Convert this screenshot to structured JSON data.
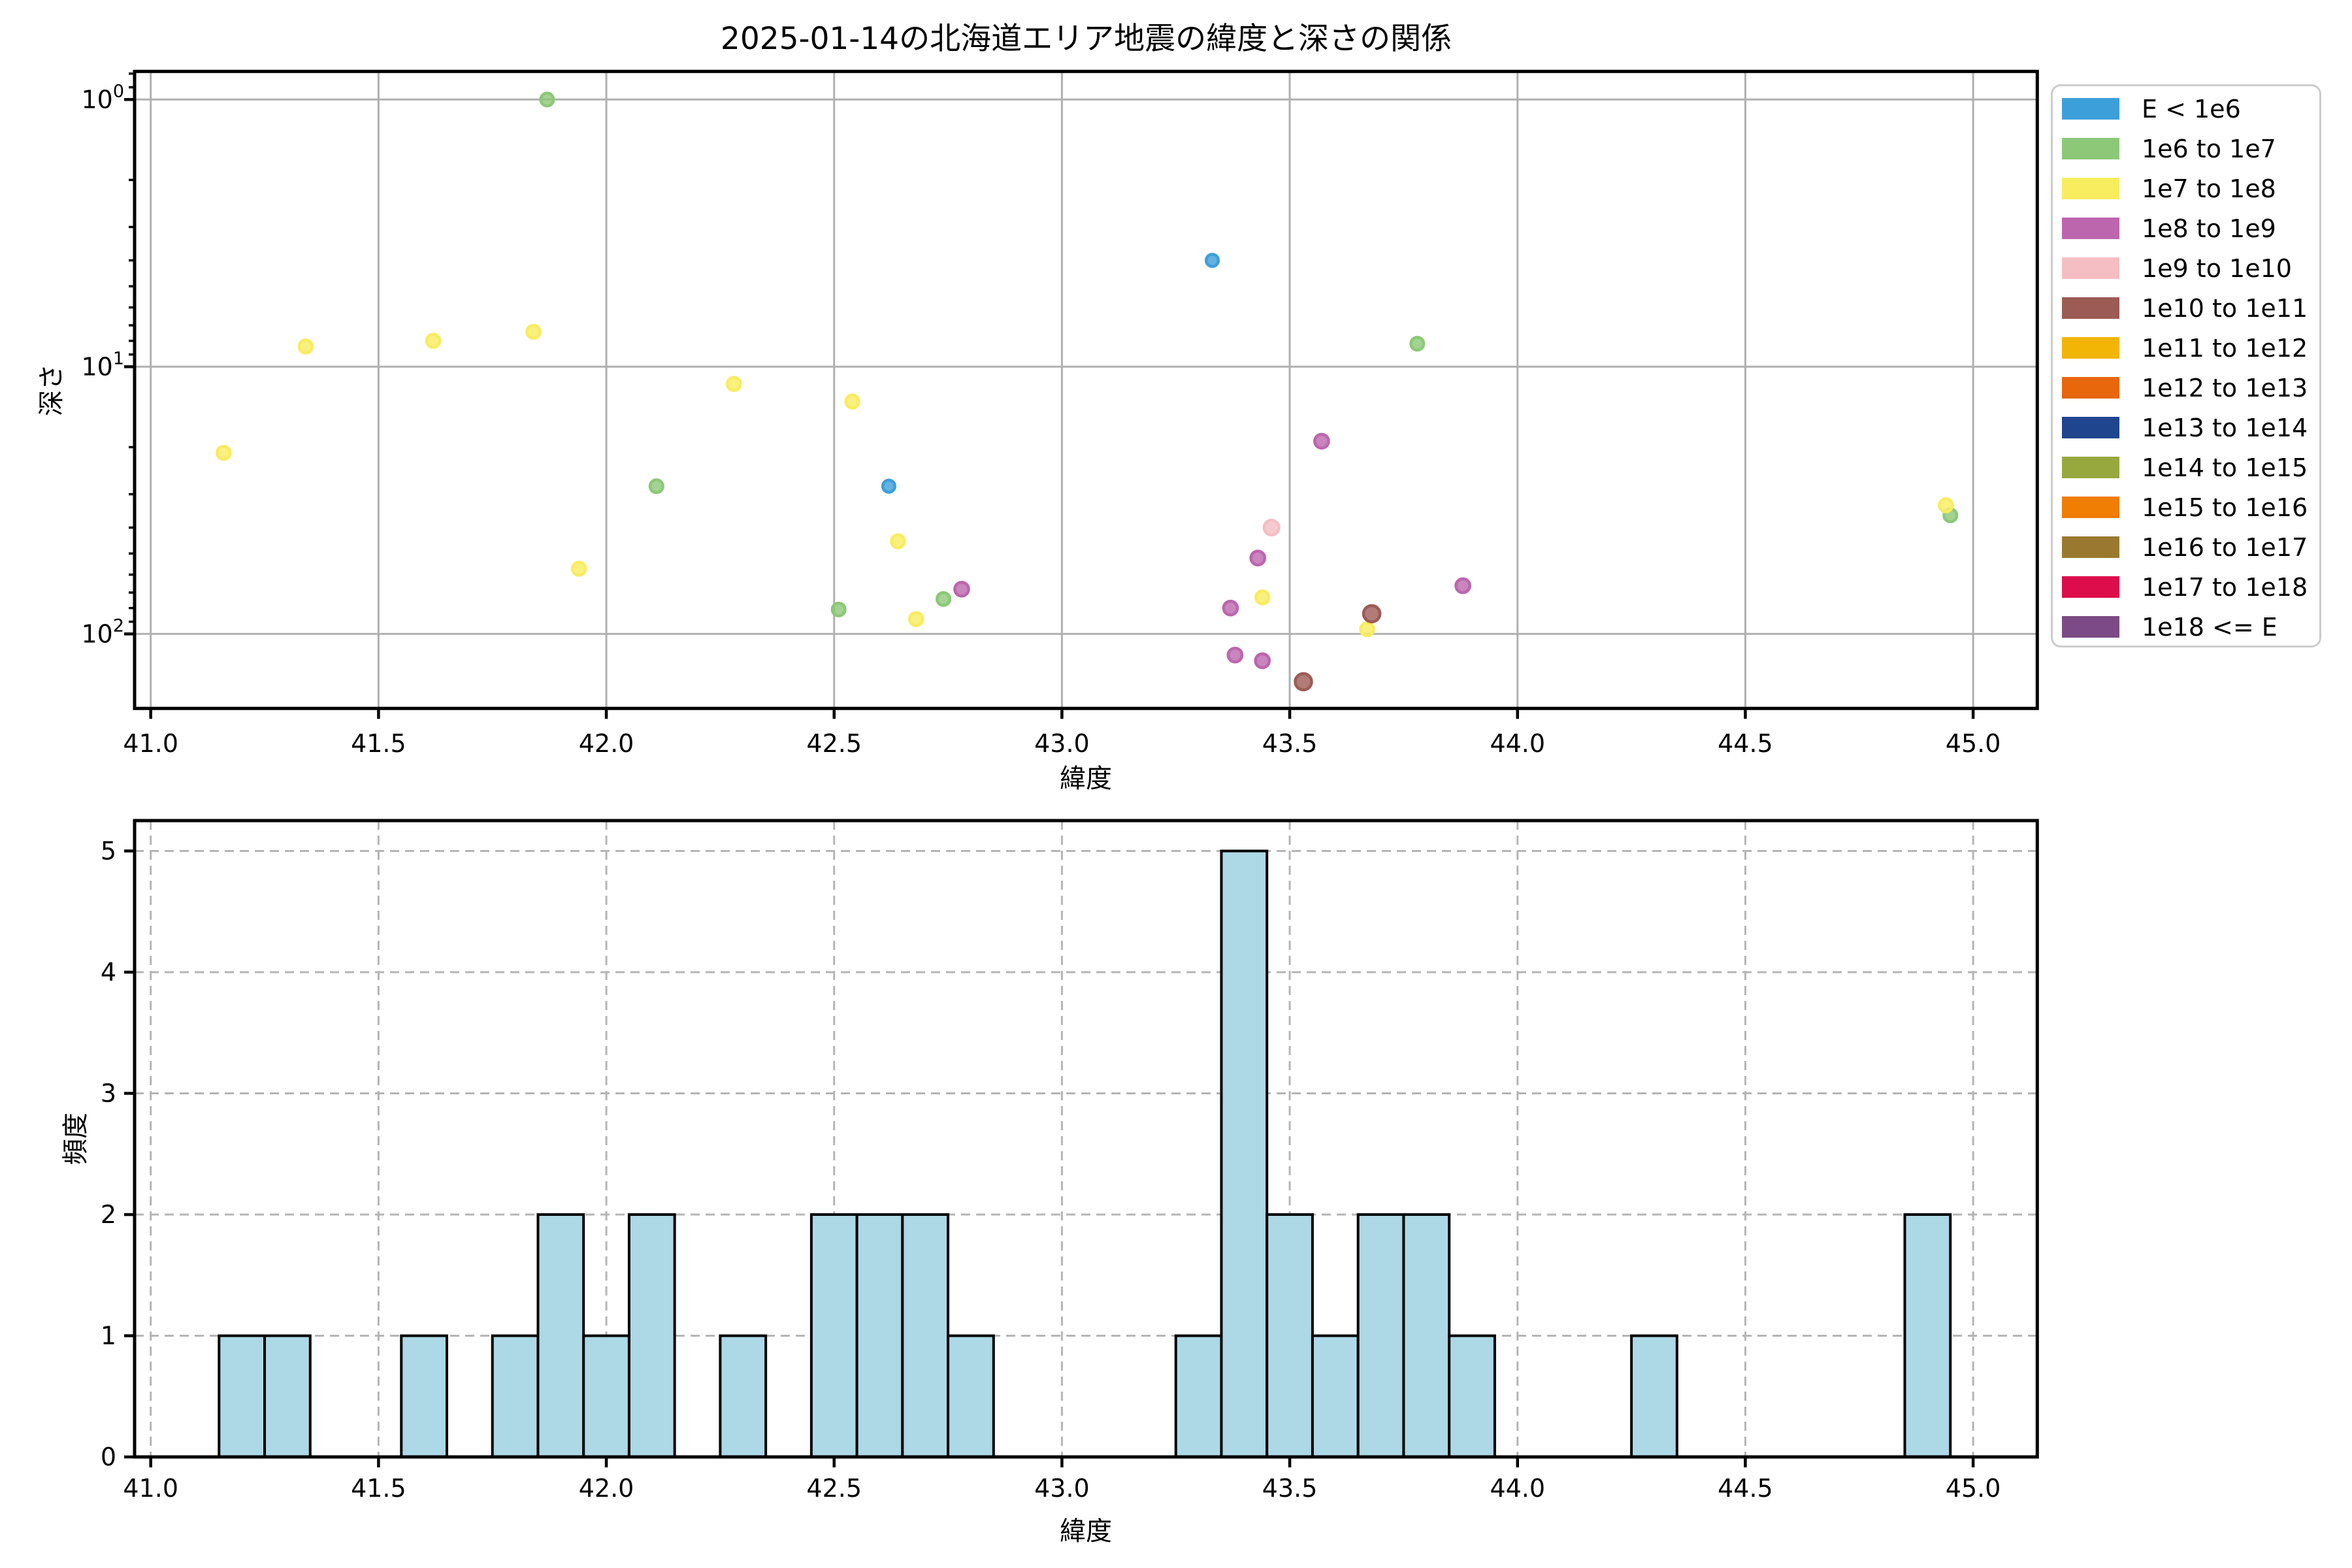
{
  "figure_title": "2025-01-14の北海道エリア地震の緯度と深さの関係",
  "legend": {
    "entries": [
      {
        "label": "E < 1e6",
        "color": "#3d9fd9"
      },
      {
        "label": "1e6 to 1e7",
        "color": "#8cc878"
      },
      {
        "label": "1e7 to 1e8",
        "color": "#f8ec5f"
      },
      {
        "label": "1e8 to 1e9",
        "color": "#bc66ae"
      },
      {
        "label": "1e9 to 1e10",
        "color": "#f4bec3"
      },
      {
        "label": "1e10 to 1e11",
        "color": "#9d5b55"
      },
      {
        "label": "1e11 to 1e12",
        "color": "#f2b505"
      },
      {
        "label": "1e12 to 1e13",
        "color": "#e8660c"
      },
      {
        "label": "1e13 to 1e14",
        "color": "#20458f"
      },
      {
        "label": "1e14 to 1e15",
        "color": "#96a83e"
      },
      {
        "label": "1e15 to 1e16",
        "color": "#f07d04"
      },
      {
        "label": "1e16 to 1e17",
        "color": "#9a782f"
      },
      {
        "label": "1e17 to 1e18",
        "color": "#dd0d4b"
      },
      {
        "label": "1e18 <= E",
        "color": "#7c4a86"
      }
    ]
  },
  "chart_data": [
    {
      "type": "scatter",
      "title": "2025-01-14の北海道エリア地震の緯度と深さの関係",
      "xlabel": "緯度",
      "ylabel": "深さ",
      "x_ticks": [
        "41.0",
        "41.5",
        "42.0",
        "42.5",
        "43.0",
        "43.5",
        "44.0",
        "44.5",
        "45.0"
      ],
      "x_tick_values": [
        41.0,
        41.5,
        42.0,
        42.5,
        43.0,
        43.5,
        44.0,
        44.5,
        45.0
      ],
      "y_scale": "log",
      "y_axis_inverted": true,
      "y_ticks": [
        {
          "mantissa": "10",
          "exp": "0",
          "value": 1
        },
        {
          "mantissa": "10",
          "exp": "1",
          "value": 10
        },
        {
          "mantissa": "10",
          "exp": "2",
          "value": 100
        }
      ],
      "xlim": [
        40.965,
        45.141
      ],
      "ylim": [
        0.78,
        194
      ],
      "grid": "solid",
      "legend_position": "outside upper right",
      "series": [
        {
          "name": "E < 1e6",
          "points": [
            [
              43.33,
              4.0
            ],
            [
              42.62,
              28
            ]
          ]
        },
        {
          "name": "1e6 to 1e7",
          "points": [
            [
              41.87,
              1.0
            ],
            [
              42.11,
              28
            ],
            [
              42.51,
              81
            ],
            [
              42.74,
              74
            ],
            [
              43.78,
              8.2
            ],
            [
              44.95,
              36
            ]
          ]
        },
        {
          "name": "1e7 to 1e8",
          "points": [
            [
              41.16,
              21
            ],
            [
              41.34,
              8.4
            ],
            [
              41.62,
              8.0
            ],
            [
              41.84,
              7.4
            ],
            [
              41.94,
              57
            ],
            [
              42.28,
              11.6
            ],
            [
              42.54,
              13.5
            ],
            [
              42.64,
              45
            ],
            [
              42.68,
              88
            ],
            [
              43.44,
              73
            ],
            [
              43.67,
              96
            ],
            [
              44.94,
              33
            ]
          ]
        },
        {
          "name": "1e8 to 1e9",
          "points": [
            [
              42.78,
              68
            ],
            [
              43.37,
              80
            ],
            [
              43.38,
              120
            ],
            [
              43.43,
              52
            ],
            [
              43.44,
              126
            ],
            [
              43.57,
              19
            ],
            [
              43.88,
              66
            ]
          ]
        },
        {
          "name": "1e9 to 1e10",
          "points": [
            [
              43.46,
              40
            ]
          ]
        },
        {
          "name": "1e10 to 1e11",
          "points": [
            [
              43.53,
              151
            ],
            [
              43.68,
              84
            ]
          ]
        },
        {
          "name": "1e11 to 1e12",
          "points": []
        },
        {
          "name": "1e12 to 1e13",
          "points": []
        },
        {
          "name": "1e13 to 1e14",
          "points": []
        },
        {
          "name": "1e14 to 1e15",
          "points": []
        },
        {
          "name": "1e15 to 1e16",
          "points": []
        },
        {
          "name": "1e16 to 1e17",
          "points": []
        },
        {
          "name": "1e17 to 1e18",
          "points": []
        },
        {
          "name": "1e18 <= E",
          "points": []
        }
      ]
    },
    {
      "type": "bar",
      "subtype": "histogram",
      "xlabel": "緯度",
      "ylabel": "頻度",
      "x_ticks": [
        "41.0",
        "41.5",
        "42.0",
        "42.5",
        "43.0",
        "43.5",
        "44.0",
        "44.5",
        "45.0"
      ],
      "x_tick_values": [
        41.0,
        41.5,
        42.0,
        42.5,
        43.0,
        43.5,
        44.0,
        44.5,
        45.0
      ],
      "y_ticks": [
        "0",
        "1",
        "2",
        "3",
        "4",
        "5"
      ],
      "y_tick_values": [
        0,
        1,
        2,
        3,
        4,
        5
      ],
      "ylim": [
        0,
        5.25
      ],
      "bin_width": 0.1,
      "grid": "dashed",
      "bar_color": "#ADD8E6",
      "bar_edge_color": "#000000",
      "bars": [
        {
          "x0": 41.15,
          "x1": 41.25,
          "count": 1
        },
        {
          "x0": 41.25,
          "x1": 41.35,
          "count": 1
        },
        {
          "x0": 41.55,
          "x1": 41.65,
          "count": 1
        },
        {
          "x0": 41.75,
          "x1": 41.85,
          "count": 1
        },
        {
          "x0": 41.85,
          "x1": 41.95,
          "count": 2
        },
        {
          "x0": 41.95,
          "x1": 42.05,
          "count": 1
        },
        {
          "x0": 42.05,
          "x1": 42.15,
          "count": 2
        },
        {
          "x0": 42.25,
          "x1": 42.35,
          "count": 1
        },
        {
          "x0": 42.45,
          "x1": 42.55,
          "count": 2
        },
        {
          "x0": 42.55,
          "x1": 42.65,
          "count": 2
        },
        {
          "x0": 42.65,
          "x1": 42.75,
          "count": 2
        },
        {
          "x0": 42.75,
          "x1": 42.85,
          "count": 1
        },
        {
          "x0": 43.25,
          "x1": 43.35,
          "count": 1
        },
        {
          "x0": 43.35,
          "x1": 43.45,
          "count": 5
        },
        {
          "x0": 43.45,
          "x1": 43.55,
          "count": 2
        },
        {
          "x0": 43.55,
          "x1": 43.65,
          "count": 1
        },
        {
          "x0": 43.65,
          "x1": 43.75,
          "count": 2
        },
        {
          "x0": 43.75,
          "x1": 43.85,
          "count": 2
        },
        {
          "x0": 43.85,
          "x1": 43.95,
          "count": 1
        },
        {
          "x0": 44.25,
          "x1": 44.35,
          "count": 1
        },
        {
          "x0": 44.85,
          "x1": 44.95,
          "count": 2
        }
      ]
    }
  ]
}
